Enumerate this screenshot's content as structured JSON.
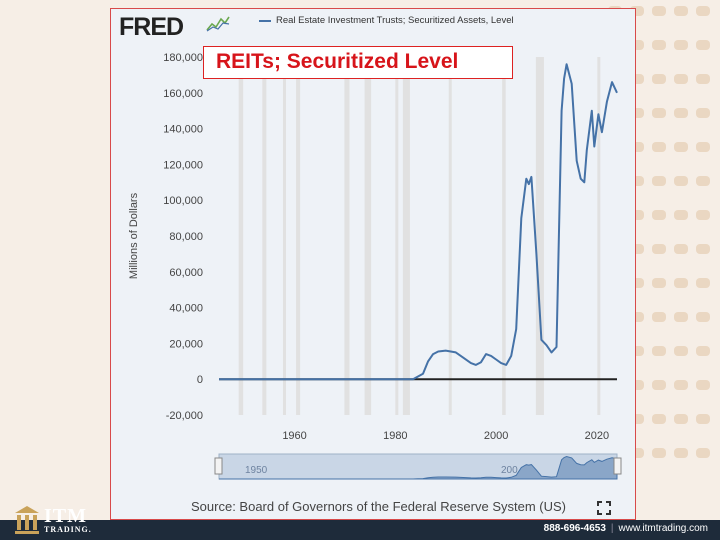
{
  "brand": {
    "fred_logo": "FRED",
    "itm_logo": "ITM",
    "itm_sub": "TRADING.",
    "phone": "888-696-4653",
    "website": "www.itmtrading.com",
    "accent_color": "#d7141a"
  },
  "overlay_title": "REITs; Securitized Level",
  "chart_data": {
    "type": "line",
    "title": "",
    "xlabel": "",
    "ylabel": "Millions of Dollars",
    "xlim": [
      1945,
      2024
    ],
    "ylim": [
      -20000,
      180000
    ],
    "x_ticks": [
      1960,
      1980,
      2000,
      2020
    ],
    "y_ticks": [
      -20000,
      0,
      20000,
      40000,
      60000,
      80000,
      100000,
      120000,
      140000,
      160000,
      180000
    ],
    "y_tick_labels": [
      "-20,000",
      "0",
      "20,000",
      "40,000",
      "60,000",
      "80,000",
      "100,000",
      "120,000",
      "140,000",
      "160,000",
      "180,000"
    ],
    "grid": "horizontal",
    "legend_placement": "top",
    "line_color": "#4572a7",
    "recession_color": "#e1e1e1",
    "recessions": [
      [
        1948.9,
        1949.8
      ],
      [
        1953.6,
        1954.4
      ],
      [
        1957.7,
        1958.3
      ],
      [
        1960.3,
        1961.1
      ],
      [
        1969.9,
        1970.9
      ],
      [
        1973.9,
        1975.2
      ],
      [
        1980.0,
        1980.5
      ],
      [
        1981.5,
        1982.9
      ],
      [
        1990.6,
        1991.2
      ],
      [
        2001.2,
        2001.9
      ],
      [
        2007.9,
        2009.5
      ],
      [
        2020.1,
        2020.4
      ]
    ],
    "series": [
      {
        "name": "Real Estate Investment Trusts; Securitized Assets, Level",
        "x": [
          1945,
          1983.5,
          1984.5,
          1985.5,
          1986.5,
          1987.5,
          1988.5,
          1990,
          1992,
          1993.5,
          1995,
          1996,
          1997,
          1998,
          1999,
          2000,
          2001,
          2002,
          2003,
          2004,
          2005,
          2006,
          2006.5,
          2007,
          2008,
          2009,
          2010,
          2011,
          2012,
          2013,
          2013.5,
          2014,
          2015,
          2016,
          2016.8,
          2017.5,
          2018,
          2019,
          2019.5,
          2020.3,
          2021,
          2022,
          2023,
          2024
        ],
        "y": [
          0,
          0,
          1500,
          3000,
          10000,
          14000,
          15500,
          16000,
          15000,
          12000,
          9000,
          8000,
          9500,
          14000,
          13000,
          11000,
          9000,
          8000,
          13000,
          28000,
          90000,
          112000,
          109000,
          113000,
          70000,
          22000,
          19000,
          15000,
          18000,
          150000,
          168000,
          176000,
          165000,
          122000,
          112000,
          110000,
          128000,
          150000,
          130000,
          148000,
          138000,
          155000,
          166000,
          160000
        ]
      },
      {
        "name": "",
        "x": [
          1945,
          2024
        ],
        "y": [
          0,
          0
        ]
      }
    ]
  },
  "navigator": {
    "label_start": "1950",
    "label_end": "200"
  },
  "source_text": "Source: Board of Governors of the Federal Reserve System (US)"
}
